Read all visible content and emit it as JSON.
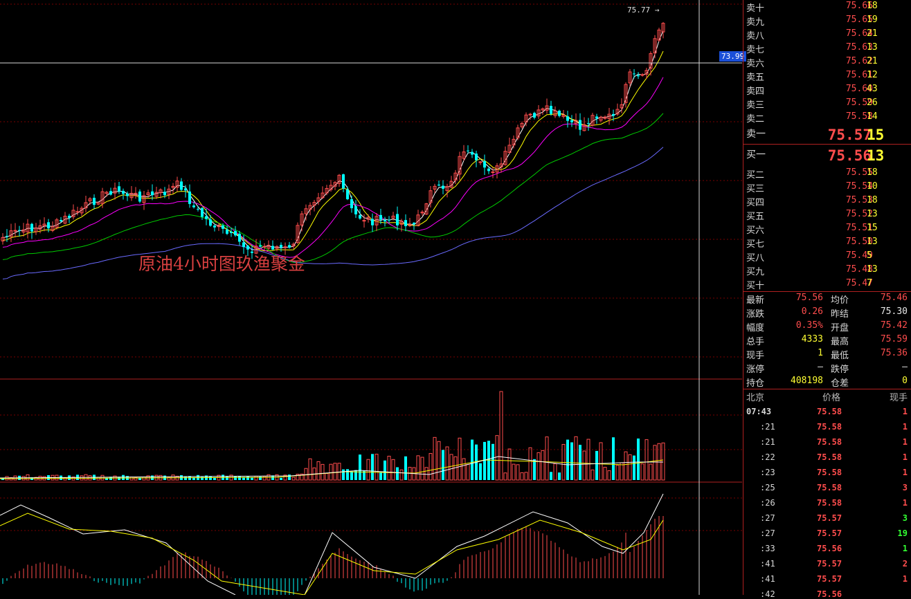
{
  "chart": {
    "watermark": "原油4小时图玖渔聚金",
    "high_label": "75.77",
    "crosshair_price": "73.99",
    "colors": {
      "up": "#ff4d4d",
      "down": "#00ffff",
      "ma1": "#ffffff",
      "ma2": "#ffff00",
      "ma3": "#ff00ff",
      "ma4": "#00cc00",
      "ma5": "#6a6aff",
      "grid": "#7a0000"
    }
  },
  "order_book": {
    "asks": [
      {
        "label": "卖十",
        "price": "75.66",
        "vol": "18"
      },
      {
        "label": "卖九",
        "price": "75.65",
        "vol": "19"
      },
      {
        "label": "卖八",
        "price": "75.64",
        "vol": "21"
      },
      {
        "label": "卖七",
        "price": "75.63",
        "vol": "13"
      },
      {
        "label": "卖六",
        "price": "75.62",
        "vol": "21"
      },
      {
        "label": "卖五",
        "price": "75.61",
        "vol": "12"
      },
      {
        "label": "卖四",
        "price": "75.60",
        "vol": "43"
      },
      {
        "label": "卖三",
        "price": "75.59",
        "vol": "26"
      },
      {
        "label": "卖二",
        "price": "75.58",
        "vol": "14"
      },
      {
        "label": "卖一",
        "price": "75.57",
        "vol": "15"
      }
    ],
    "bids": [
      {
        "label": "买一",
        "price": "75.56",
        "vol": "13"
      },
      {
        "label": "买二",
        "price": "75.55",
        "vol": "18"
      },
      {
        "label": "买三",
        "price": "75.54",
        "vol": "10"
      },
      {
        "label": "买四",
        "price": "75.53",
        "vol": "18"
      },
      {
        "label": "买五",
        "price": "75.52",
        "vol": "13"
      },
      {
        "label": "买六",
        "price": "75.51",
        "vol": "15"
      },
      {
        "label": "买七",
        "price": "75.50",
        "vol": "13"
      },
      {
        "label": "买八",
        "price": "75.49",
        "vol": "5"
      },
      {
        "label": "买九",
        "price": "75.48",
        "vol": "13"
      },
      {
        "label": "买十",
        "price": "75.47",
        "vol": "7"
      }
    ]
  },
  "quote": {
    "latest_label": "最新",
    "latest": "75.56",
    "avg_label": "均价",
    "avg": "75.46",
    "change_label": "涨跌",
    "change": "0.26",
    "prev_label": "昨结",
    "prev": "75.30",
    "pct_label": "幅度",
    "pct": "0.35%",
    "open_label": "开盘",
    "open": "75.42",
    "volume_label": "总手",
    "volume": "4333",
    "high_label": "最高",
    "high": "75.59",
    "cur_label": "现手",
    "cur": "1",
    "low_label": "最低",
    "low": "75.36",
    "limitup_label": "涨停",
    "limitup": "—",
    "limitdown_label": "跌停",
    "limitdown": "—",
    "oi_label": "持仓",
    "oi": "408198",
    "oidiff_label": "仓差",
    "oidiff": "0"
  },
  "ticks": {
    "head_time": "北京",
    "head_price": "价格",
    "head_qty": "现手",
    "rows": [
      {
        "time": "07:43",
        "price": "75.58",
        "qty": "1",
        "color": "red"
      },
      {
        "time": ":21",
        "price": "75.58",
        "qty": "1",
        "color": "red"
      },
      {
        "time": ":21",
        "price": "75.58",
        "qty": "1",
        "color": "red"
      },
      {
        "time": ":22",
        "price": "75.58",
        "qty": "1",
        "color": "red"
      },
      {
        "time": ":23",
        "price": "75.58",
        "qty": "1",
        "color": "red"
      },
      {
        "time": ":25",
        "price": "75.58",
        "qty": "3",
        "color": "red"
      },
      {
        "time": ":26",
        "price": "75.58",
        "qty": "1",
        "color": "red"
      },
      {
        "time": ":27",
        "price": "75.57",
        "qty": "3",
        "color": "green"
      },
      {
        "time": ":27",
        "price": "75.57",
        "qty": "19",
        "color": "green"
      },
      {
        "time": ":33",
        "price": "75.56",
        "qty": "1",
        "color": "green"
      },
      {
        "time": ":41",
        "price": "75.57",
        "qty": "2",
        "color": "red"
      },
      {
        "time": ":41",
        "price": "75.57",
        "qty": "1",
        "color": "red"
      },
      {
        "time": ":42",
        "price": "75.56",
        "qty": "",
        "color": "red"
      }
    ]
  }
}
